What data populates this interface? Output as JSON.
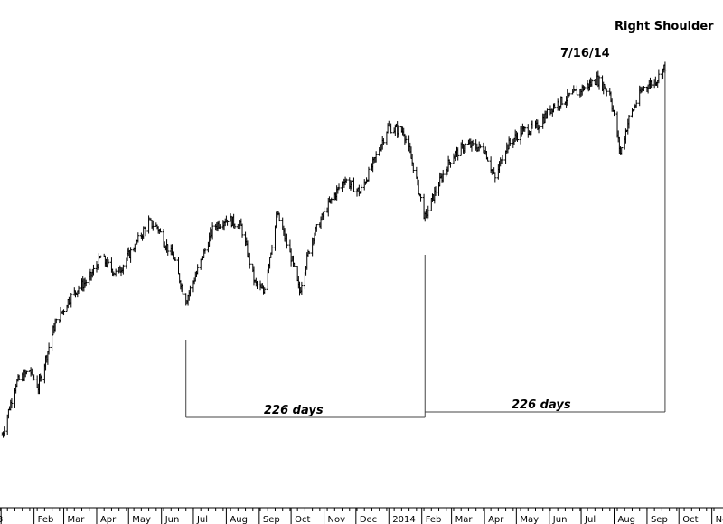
{
  "chart_data": {
    "type": "ohlc",
    "x_axis": {
      "tick_labels": [
        "3",
        "Feb",
        "Mar",
        "Apr",
        "May",
        "Jun",
        "Jul",
        "Aug",
        "Sep",
        "Oct",
        "Nov",
        "Dec",
        "2014",
        "Feb",
        "Mar",
        "Apr",
        "May",
        "Jun",
        "Jul",
        "Aug",
        "Sep",
        "Oct",
        "No"
      ]
    },
    "annotations": {
      "right_shoulder": "Right Shoulder",
      "peak_date": "7/16/14",
      "span_1": "226 days",
      "span_2": "226 days"
    },
    "series_profile": {
      "note_units": "relative price level, 0 = chart bottom, 100 = chart top",
      "points": [
        [
          "2013-01-02",
          8
        ],
        [
          "2013-01-15",
          20
        ],
        [
          "2013-01-28",
          23
        ],
        [
          "2013-02-05",
          19
        ],
        [
          "2013-02-20",
          33
        ],
        [
          "2013-03-05",
          39
        ],
        [
          "2013-03-15",
          42
        ],
        [
          "2013-03-25",
          44
        ],
        [
          "2013-04-05",
          49
        ],
        [
          "2013-04-20",
          45
        ],
        [
          "2013-05-05",
          51
        ],
        [
          "2013-05-20",
          57
        ],
        [
          "2013-05-28",
          56
        ],
        [
          "2013-06-05",
          52
        ],
        [
          "2013-06-12",
          49
        ],
        [
          "2013-06-24",
          39
        ],
        [
          "2013-07-05",
          46
        ],
        [
          "2013-07-20",
          56
        ],
        [
          "2013-08-02",
          58
        ],
        [
          "2013-08-15",
          56
        ],
        [
          "2013-08-28",
          43
        ],
        [
          "2013-09-05",
          41
        ],
        [
          "2013-09-18",
          59
        ],
        [
          "2013-10-01",
          49
        ],
        [
          "2013-10-09",
          41
        ],
        [
          "2013-10-20",
          53
        ],
        [
          "2013-11-05",
          61
        ],
        [
          "2013-11-20",
          67
        ],
        [
          "2013-12-05",
          64
        ],
        [
          "2013-12-18",
          71
        ],
        [
          "2013-12-31",
          79
        ],
        [
          "2014-01-15",
          78
        ],
        [
          "2014-01-24",
          70
        ],
        [
          "2014-02-04",
          58
        ],
        [
          "2014-02-15",
          65
        ],
        [
          "2014-03-01",
          72
        ],
        [
          "2014-03-15",
          75
        ],
        [
          "2014-04-01",
          74
        ],
        [
          "2014-04-11",
          67
        ],
        [
          "2014-04-20",
          74
        ],
        [
          "2014-05-05",
          78
        ],
        [
          "2014-05-20",
          79
        ],
        [
          "2014-06-05",
          84
        ],
        [
          "2014-06-20",
          86
        ],
        [
          "2014-07-03",
          88
        ],
        [
          "2014-07-16",
          90
        ],
        [
          "2014-07-28",
          87
        ],
        [
          "2014-08-07",
          73
        ],
        [
          "2014-08-15",
          81
        ],
        [
          "2014-08-28",
          88
        ],
        [
          "2014-09-10",
          90
        ],
        [
          "2014-09-18",
          93
        ]
      ]
    }
  }
}
